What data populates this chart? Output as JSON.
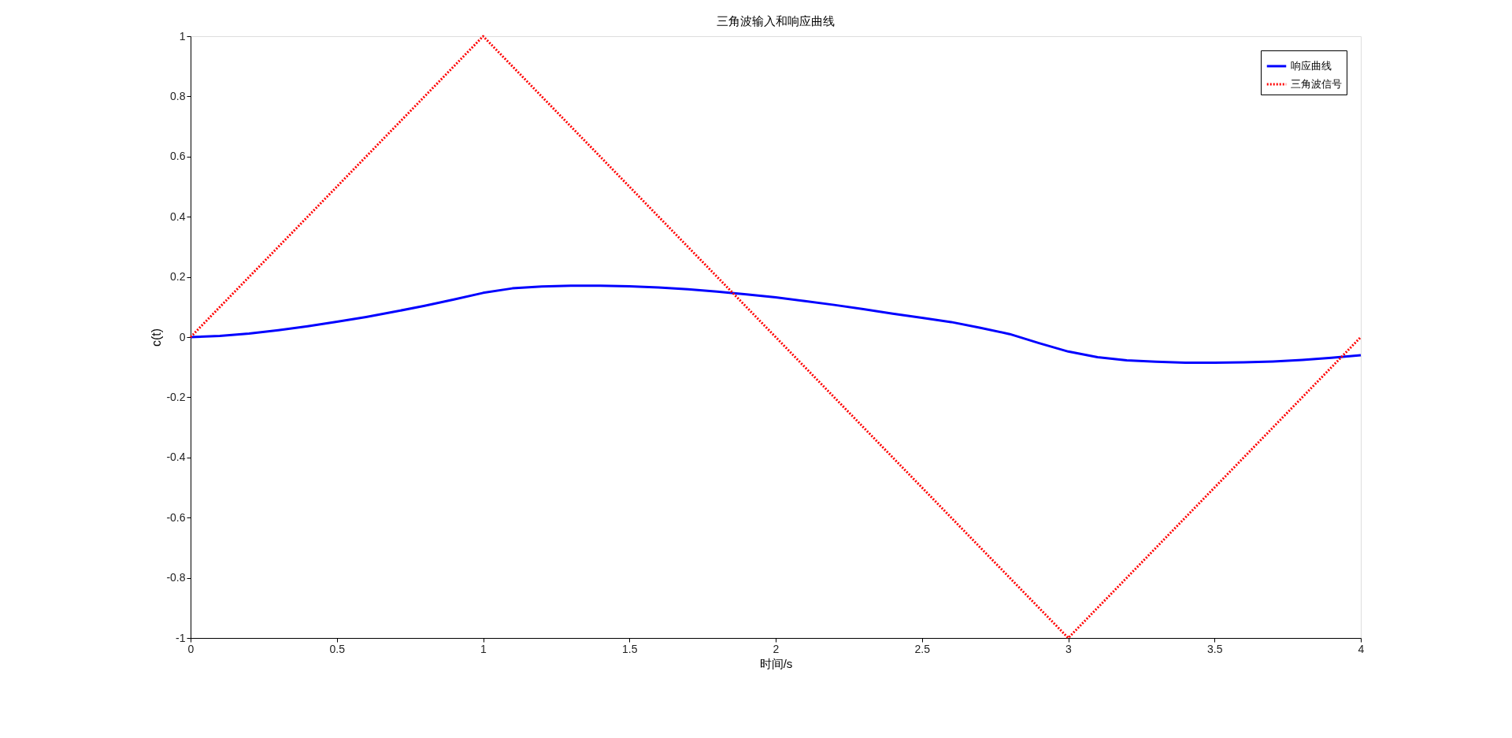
{
  "chart_data": {
    "type": "line",
    "title": "三角波输入和响应曲线",
    "xlabel": "时间/s",
    "ylabel": "c(t)",
    "xlim": [
      0,
      4
    ],
    "xticks": [
      0,
      0.5,
      1,
      1.5,
      2,
      2.5,
      3,
      3.5,
      4
    ],
    "ylim": [
      -1,
      1
    ],
    "yticks": [
      -1,
      -0.8,
      -0.6,
      -0.4,
      -0.2,
      0,
      0.2,
      0.4,
      0.6,
      0.8,
      1
    ],
    "grid": false,
    "legend": "top right",
    "marker": "none",
    "series": [
      {
        "name": "响应曲线",
        "color": "#0000ff",
        "line_style": "solid",
        "x": [
          0,
          0.1,
          0.2,
          0.3,
          0.4,
          0.5,
          0.6,
          0.7,
          0.8,
          0.9,
          1.0,
          1.1,
          1.2,
          1.3,
          1.4,
          1.5,
          1.6,
          1.7,
          1.8,
          1.9,
          2.0,
          2.1,
          2.2,
          2.3,
          2.4,
          2.5,
          2.6,
          2.7,
          2.8,
          2.9,
          3.0,
          3.1,
          3.2,
          3.3,
          3.4,
          3.5,
          3.6,
          3.7,
          3.8,
          3.9,
          4.0
        ],
        "values": [
          0,
          0.004,
          0.012,
          0.023,
          0.036,
          0.051,
          0.067,
          0.085,
          0.104,
          0.125,
          0.147,
          0.162,
          0.168,
          0.171,
          0.171,
          0.169,
          0.165,
          0.159,
          0.151,
          0.142,
          0.132,
          0.12,
          0.107,
          0.093,
          0.078,
          0.064,
          0.05,
          0.031,
          0.01,
          -0.02,
          -0.048,
          -0.067,
          -0.077,
          -0.082,
          -0.085,
          -0.085,
          -0.084,
          -0.081,
          -0.076,
          -0.069,
          -0.06
        ]
      },
      {
        "name": "三角波信号",
        "color": "#ff0000",
        "line_style": "dotted",
        "x": [
          0,
          1,
          3,
          4
        ],
        "values": [
          0,
          1,
          -1,
          0
        ]
      }
    ]
  }
}
